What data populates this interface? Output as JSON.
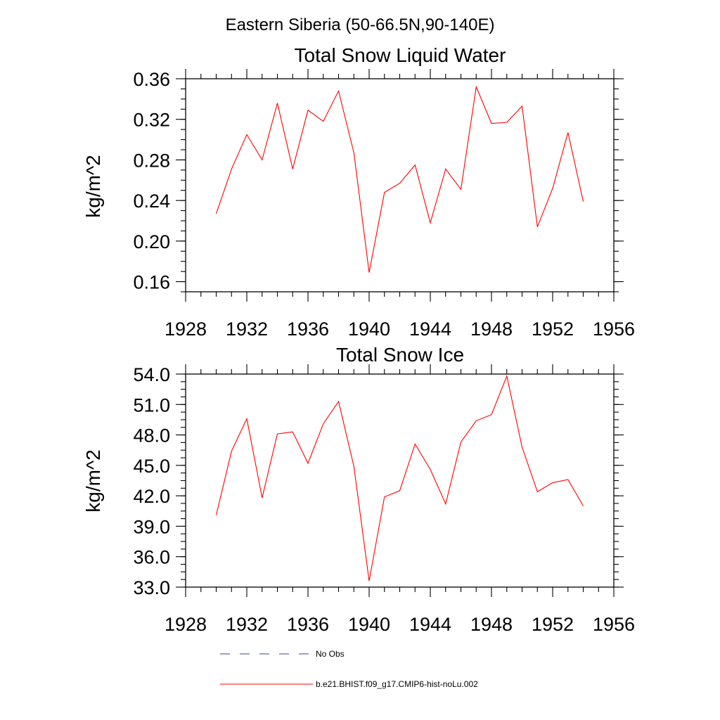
{
  "suptitle": "Eastern Siberia (50-66.5N,90-140E)",
  "chart_data": [
    {
      "type": "line",
      "title": "Total Snow Liquid Water",
      "ylabel": "kg/m^2",
      "xlabel": "",
      "xlim": [
        1928,
        1956
      ],
      "ylim": [
        0.15,
        0.36
      ],
      "xticks": [
        "1928",
        "1932",
        "1936",
        "1940",
        "1944",
        "1948",
        "1952",
        "1956"
      ],
      "yticks": [
        "0.16",
        "0.20",
        "0.24",
        "0.28",
        "0.32",
        "0.36"
      ],
      "series": [
        {
          "name": "b.e21.BHIST.f09_g17.CMIP6-hist-noLu.002",
          "color": "#ff0000",
          "x": [
            1930,
            1931,
            1932,
            1933,
            1934,
            1935,
            1936,
            1937,
            1938,
            1939,
            1940,
            1941,
            1942,
            1943,
            1944,
            1945,
            1946,
            1947,
            1948,
            1949,
            1950,
            1951,
            1952,
            1953,
            1954
          ],
          "values": [
            0.227,
            0.271,
            0.305,
            0.28,
            0.336,
            0.271,
            0.329,
            0.318,
            0.348,
            0.287,
            0.169,
            0.248,
            0.257,
            0.275,
            0.218,
            0.271,
            0.251,
            0.352,
            0.316,
            0.317,
            0.333,
            0.214,
            0.252,
            0.307,
            0.239
          ]
        }
      ]
    },
    {
      "type": "line",
      "title": "Total Snow Ice",
      "ylabel": "kg/m^2",
      "xlabel": "",
      "xlim": [
        1928,
        1956
      ],
      "ylim": [
        33.0,
        54.0
      ],
      "xticks": [
        "1928",
        "1932",
        "1936",
        "1940",
        "1944",
        "1948",
        "1952",
        "1956"
      ],
      "yticks": [
        "33.0",
        "36.0",
        "39.0",
        "42.0",
        "45.0",
        "48.0",
        "51.0",
        "54.0"
      ],
      "series": [
        {
          "name": "b.e21.BHIST.f09_g17.CMIP6-hist-noLu.002",
          "color": "#ff0000",
          "x": [
            1930,
            1931,
            1932,
            1933,
            1934,
            1935,
            1936,
            1937,
            1938,
            1939,
            1940,
            1941,
            1942,
            1943,
            1944,
            1945,
            1946,
            1947,
            1948,
            1949,
            1950,
            1951,
            1952,
            1953,
            1954
          ],
          "values": [
            40.1,
            46.4,
            49.6,
            41.8,
            48.1,
            48.3,
            45.2,
            49.1,
            51.3,
            44.9,
            33.6,
            41.9,
            42.5,
            47.1,
            44.6,
            41.2,
            47.3,
            49.4,
            50.0,
            53.8,
            46.8,
            42.4,
            43.3,
            43.6,
            41.0
          ]
        }
      ]
    }
  ],
  "legend": [
    {
      "label": "No Obs",
      "style": "dashed",
      "color": "#3a4a7a"
    },
    {
      "label": "b.e21.BHIST.f09_g17.CMIP6-hist-noLu.002",
      "style": "solid",
      "color": "#ff0000"
    }
  ]
}
